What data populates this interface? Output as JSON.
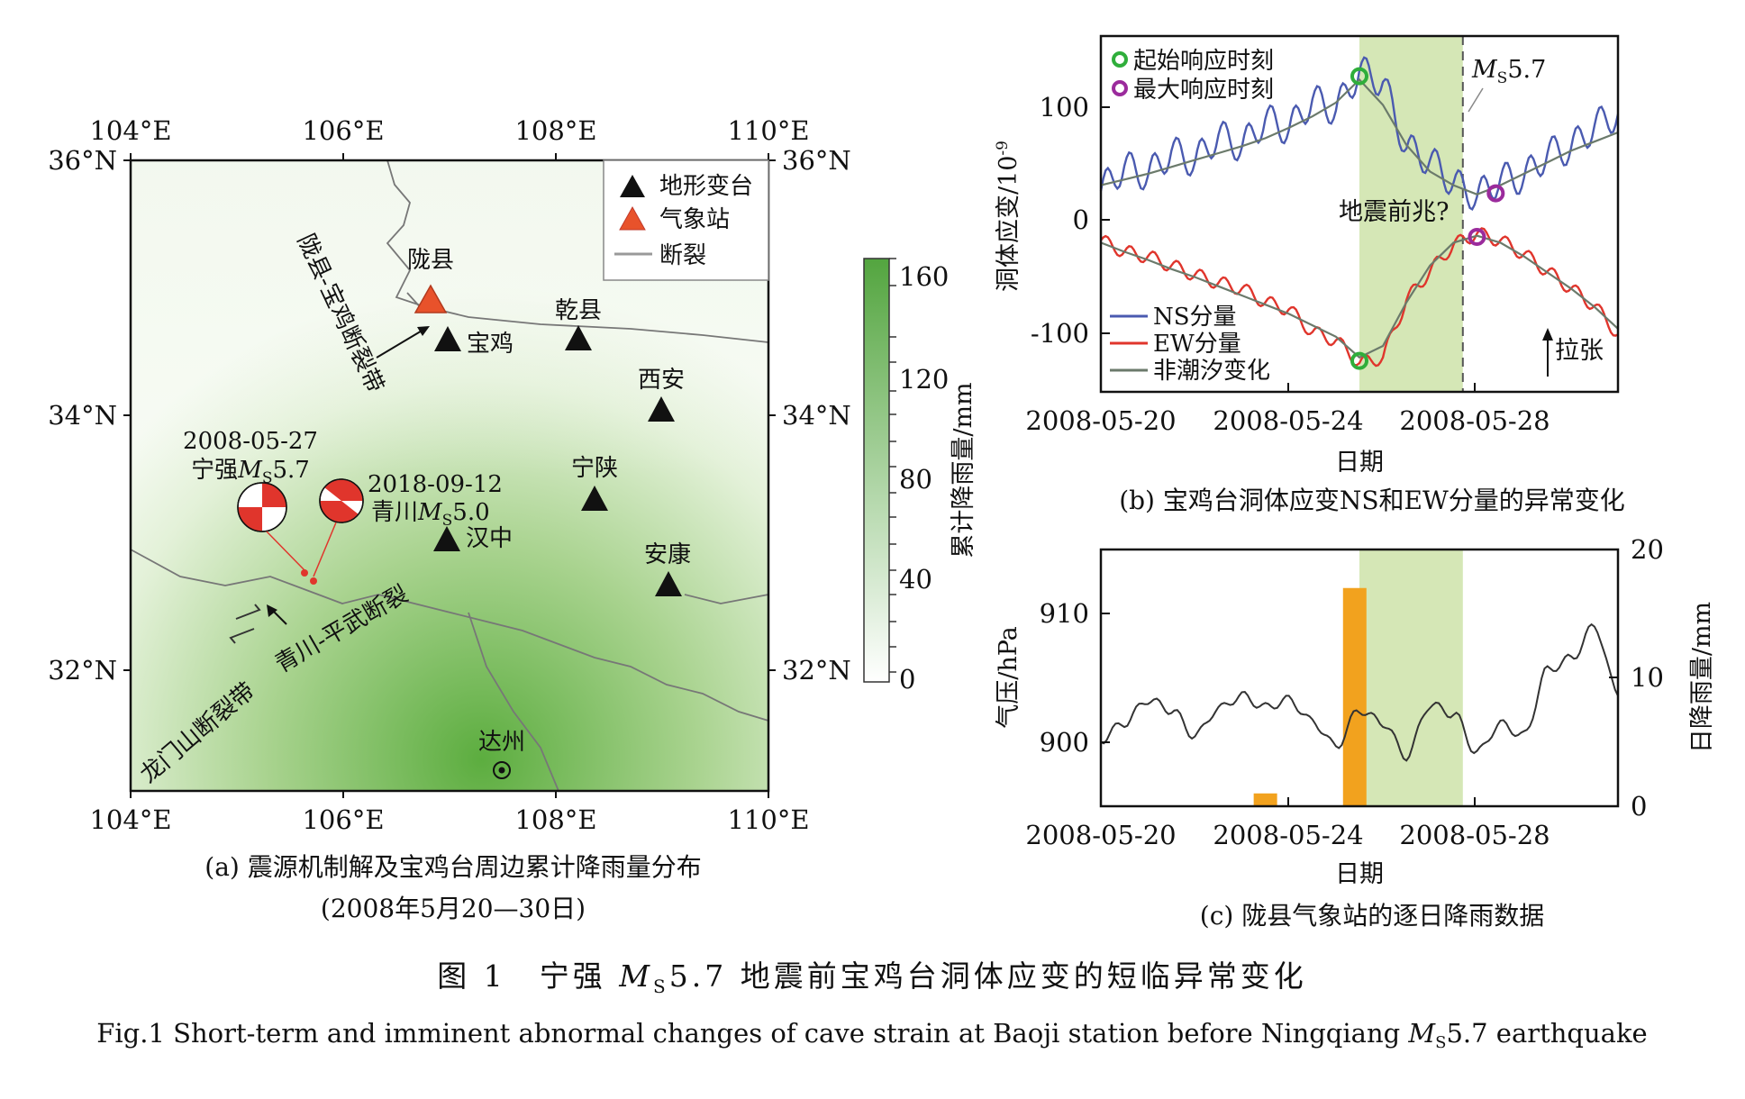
{
  "panel_a": {
    "lon_ticks": [
      "104°E",
      "106°E",
      "108°E",
      "110°E"
    ],
    "lat_ticks": [
      "36°N",
      "34°N",
      "32°N"
    ],
    "legend": {
      "deformation": "地形变台",
      "meteo": "气象站",
      "fault": "断裂"
    },
    "cities": [
      "陇县",
      "宝鸡",
      "乾县",
      "西安",
      "宁陕",
      "汉中",
      "安康",
      "达州"
    ],
    "events": [
      {
        "date": "2008-05-27",
        "name": "宁强",
        "mag": "5.7"
      },
      {
        "date": "2018-09-12",
        "name": "青川",
        "mag": "5.0"
      }
    ],
    "ms_symbol": {
      "main": "M",
      "sub": "S"
    },
    "fault_labels": [
      "陇县-宝鸡断裂带",
      "青川-平武断裂",
      "龙门山断裂带"
    ],
    "colorbar": {
      "label": "累计降雨量/mm",
      "ticks": [
        "160",
        "120",
        "80",
        "40",
        "0"
      ],
      "min": 0,
      "max": 160
    },
    "caption_line1": "(a) 震源机制解及宝鸡台周边累计降雨量分布",
    "caption_line2": "(2008年5月20—30日)"
  },
  "panel_b": {
    "ylabel": "洞体应变/10",
    "ylabel_exp": "-9",
    "xlabel": "日期",
    "legend_top": [
      "起始响应时刻",
      "最大响应时刻"
    ],
    "legend_bottom": [
      "NS分量",
      "EW分量",
      "非潮汐变化"
    ],
    "quake_label": "5.7",
    "anomaly_text": "地震前兆?",
    "tension_label": "拉张",
    "caption": "(b) 宝鸡台洞体应变NS和EW分量的异常变化"
  },
  "panel_c": {
    "ylabel_left": "气压/hPa",
    "ylabel_right": "日降雨量/mm",
    "xlabel": "日期",
    "caption": "(c) 陇县气象站的逐日降雨数据"
  },
  "figure": {
    "title_cn": "图 1　宁强 ",
    "title_cn_ms": "M",
    "title_cn_sub": "S",
    "title_cn_rest": "5.7 地震前宝鸡台洞体应变的短临异常变化",
    "title_en_pre": "Fig.1   Short-term and imminent abnormal changes of cave strain at Baoji station before Ningqiang ",
    "title_en_ms": "M",
    "title_en_sub": "S",
    "title_en_rest": "5.7 earthquake"
  },
  "colors": {
    "ns": "#4a5ab0",
    "ew": "#e0352c",
    "trend": "#6b7a6b",
    "shade": "#d5e7b6",
    "onset": "#2fae3b",
    "peak": "#9b2b9c",
    "rain": "#f2a21e",
    "meteo": "#e8522b"
  },
  "chart_data": [
    {
      "type": "line",
      "panel": "b",
      "xlabel": "日期",
      "ylabel": "洞体应变/10^-9",
      "x_ticks": [
        "2008-05-20",
        "2008-05-24",
        "2008-05-28"
      ],
      "y_ticks": [
        100,
        0,
        -100
      ],
      "xlim": [
        "2008-05-20",
        "2008-05-31"
      ],
      "ylim": [
        -150,
        160
      ],
      "shaded_interval": [
        "2008-05-25.5",
        "2008-05-27.7"
      ],
      "quake_time": "2008-05-27.7",
      "x": [
        "05-20",
        "05-20.5",
        "05-21",
        "05-21.5",
        "05-22",
        "05-22.5",
        "05-23",
        "05-23.5",
        "05-24",
        "05-24.5",
        "05-25",
        "05-25.5",
        "05-26",
        "05-26.5",
        "05-27",
        "05-27.5",
        "05-28",
        "05-28.5",
        "05-29",
        "05-29.5",
        "05-30",
        "05-30.5",
        "05-31"
      ],
      "series": [
        {
          "name": "NS分量",
          "values": [
            25,
            47,
            38,
            60,
            50,
            74,
            63,
            88,
            78,
            105,
            95,
            130,
            120,
            62,
            52,
            32,
            20,
            36,
            36,
            58,
            62,
            82,
            92
          ]
        },
        {
          "name": "EW分量",
          "values": [
            -18,
            -28,
            -32,
            -40,
            -48,
            -55,
            -60,
            -72,
            -78,
            -98,
            -105,
            -125,
            -120,
            -70,
            -45,
            -22,
            -12,
            -18,
            -30,
            -45,
            -60,
            -75,
            -100
          ]
        },
        {
          "name": "非潮汐变化",
          "values": [
            30,
            35,
            40,
            46,
            52,
            58,
            64,
            71,
            80,
            90,
            102,
            122,
            100,
            65,
            42,
            30,
            22,
            30,
            40,
            50,
            60,
            68,
            76
          ]
        },
        {
          "name": "非潮汐变化",
          "values": [
            -20,
            -28,
            -35,
            -43,
            -50,
            -58,
            -66,
            -74,
            -82,
            -92,
            -102,
            -120,
            -110,
            -72,
            -40,
            -20,
            -14,
            -20,
            -32,
            -46,
            -60,
            -76,
            -95
          ]
        }
      ],
      "onset_points": [
        {
          "x": "05-25.5",
          "y": 125
        },
        {
          "x": "05-25.5",
          "y": -123
        }
      ],
      "peak_points": [
        {
          "x": "05-28.4",
          "y": 23
        },
        {
          "x": "05-28",
          "y": -15
        }
      ]
    },
    {
      "type": "bar",
      "panel": "c",
      "xlabel": "日期",
      "ylabel_left": "气压/hPa",
      "ylabel_right": "日降雨量/mm",
      "x_ticks": [
        "2008-05-20",
        "2008-05-24",
        "2008-05-28"
      ],
      "left_ticks": [
        910,
        900
      ],
      "right_ticks": [
        20,
        10,
        0
      ],
      "left_ylim": [
        895,
        915
      ],
      "right_ylim": [
        0,
        20
      ],
      "shaded_interval": [
        "2008-05-25.5",
        "2008-05-27.7"
      ],
      "rain": {
        "dates": [
          "2008-05-23.5",
          "2008-05-25.4"
        ],
        "values": [
          1,
          17
        ]
      },
      "pressure_x": [
        "05-20",
        "05-20.5",
        "05-21",
        "05-21.5",
        "05-22",
        "05-22.5",
        "05-23",
        "05-23.5",
        "05-24",
        "05-24.5",
        "05-25",
        "05-25.5",
        "05-26",
        "05-26.5",
        "05-27",
        "05-27.5",
        "05-28",
        "05-28.5",
        "05-29",
        "05-29.5",
        "05-30",
        "05-30.5",
        "05-31"
      ],
      "pressure": [
        900.2,
        901.5,
        903.3,
        902.5,
        900.5,
        902.6,
        903.6,
        902.7,
        903.3,
        901.6,
        899.7,
        902.5,
        901.5,
        898.9,
        902.9,
        902.2,
        899.2,
        901.4,
        900.5,
        905.6,
        906.5,
        909.0,
        903.8
      ]
    }
  ]
}
